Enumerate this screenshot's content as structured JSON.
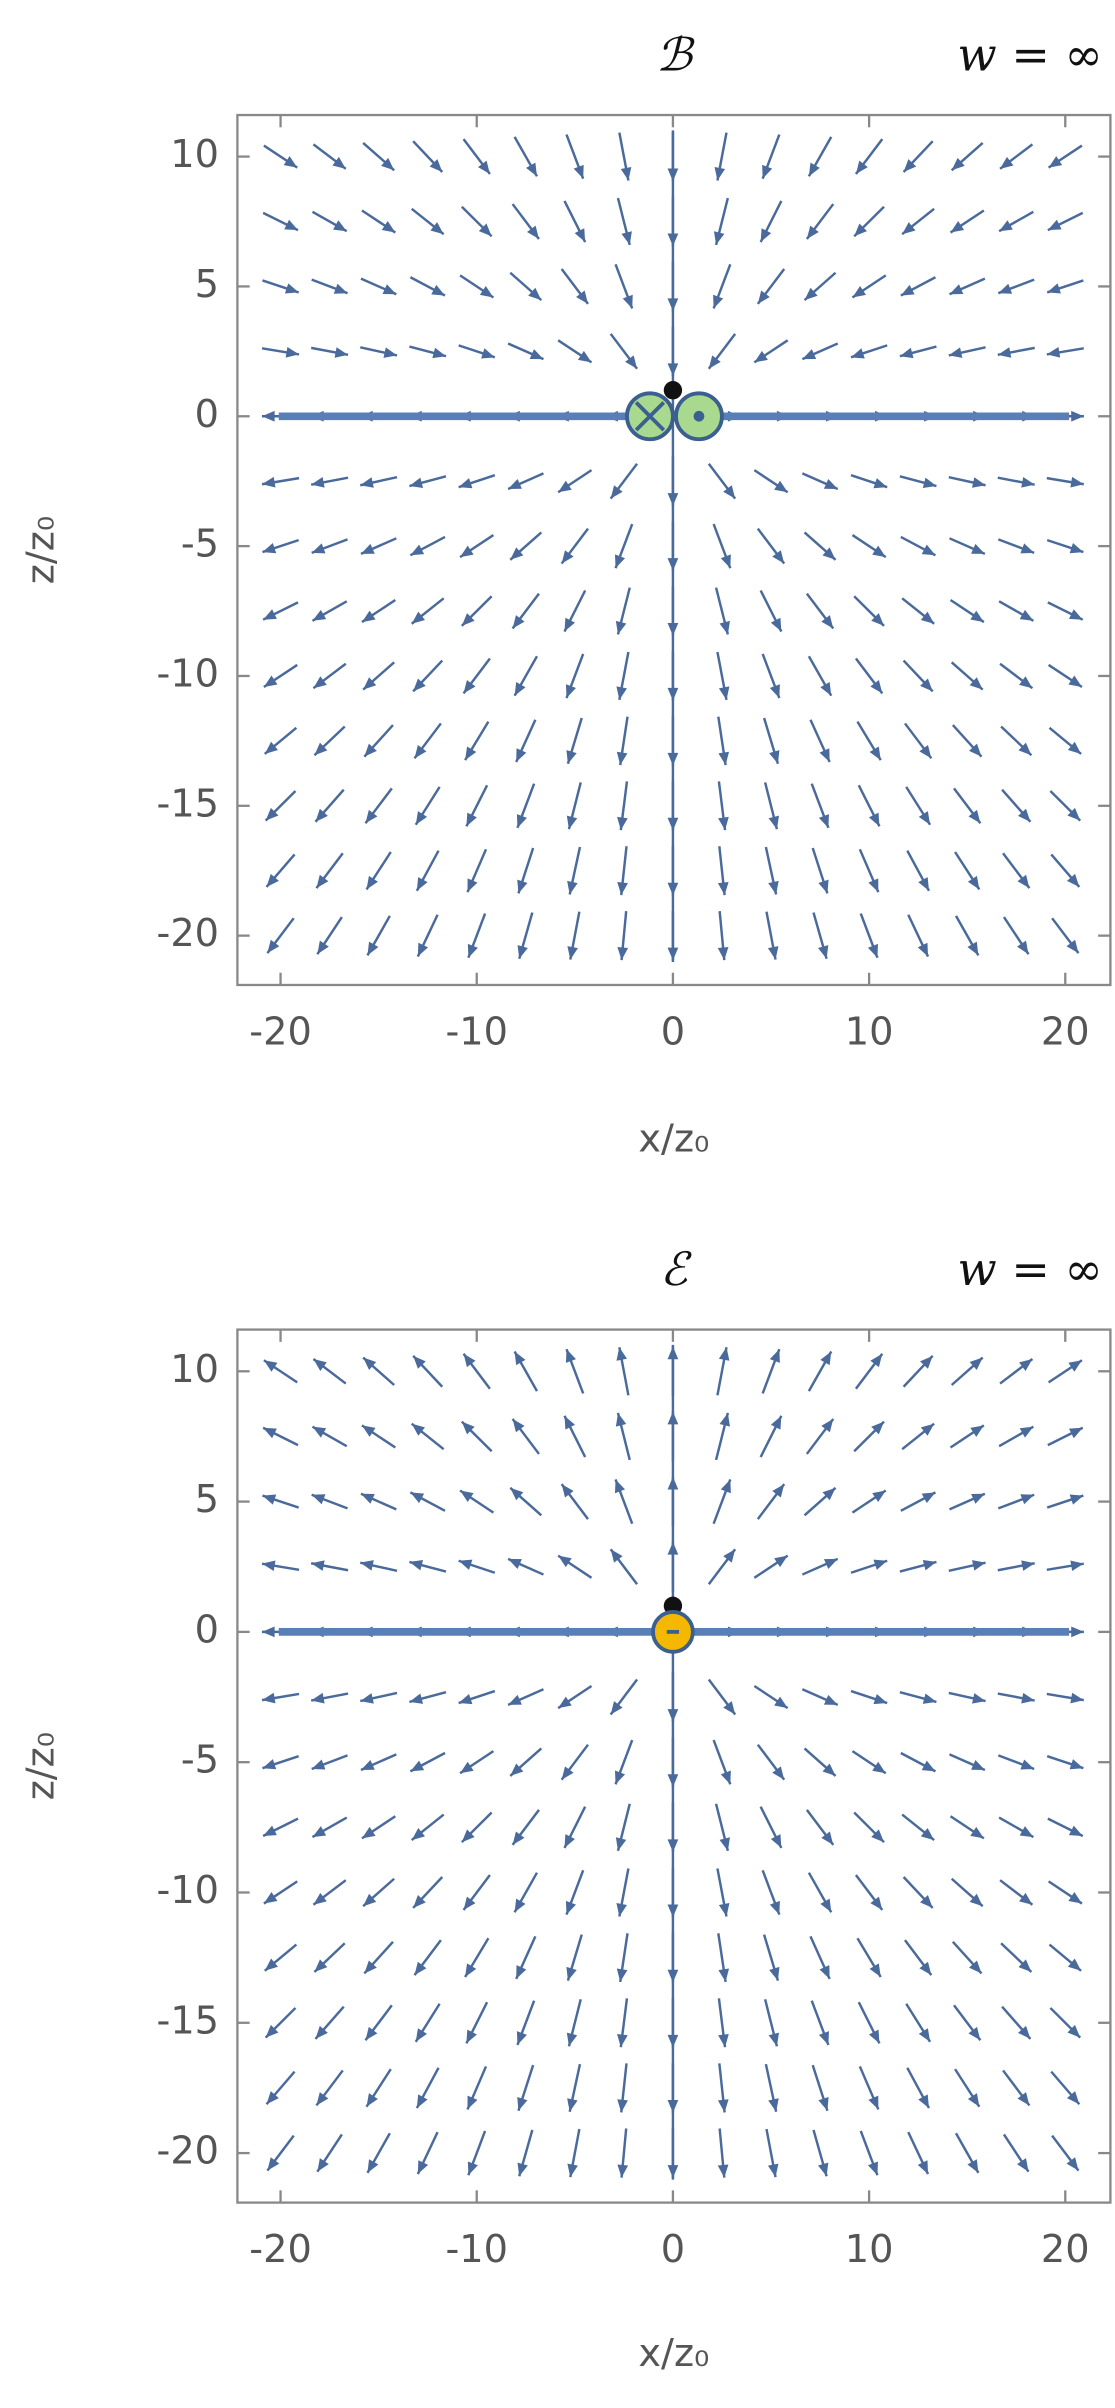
{
  "chart_data": [
    {
      "type": "stream",
      "field": "magnetic",
      "title": "ℬ",
      "annotation": "w = ∞",
      "x_label": "x/z₀",
      "y_label": "z/z₀",
      "xlim": [
        -22.2,
        22.3
      ],
      "ylim": [
        -21.9,
        11.6
      ],
      "xticks": [
        -20,
        -10,
        0,
        10,
        20
      ],
      "yticks": [
        10,
        5,
        0,
        -5,
        -10,
        -15,
        -20
      ],
      "color": "#4a6a9c"
    },
    {
      "type": "stream",
      "field": "electric",
      "title": "ℰ",
      "annotation": "w = ∞",
      "x_label": "x/z₀",
      "y_label": "z/z₀",
      "xlim": [
        -22.2,
        22.3
      ],
      "ylim": [
        -21.9,
        11.6
      ],
      "xticks": [
        -20,
        -10,
        0,
        10,
        20
      ],
      "yticks": [
        10,
        5,
        0,
        -5,
        -10,
        -15,
        -20
      ],
      "color": "#4a6a9c"
    }
  ]
}
